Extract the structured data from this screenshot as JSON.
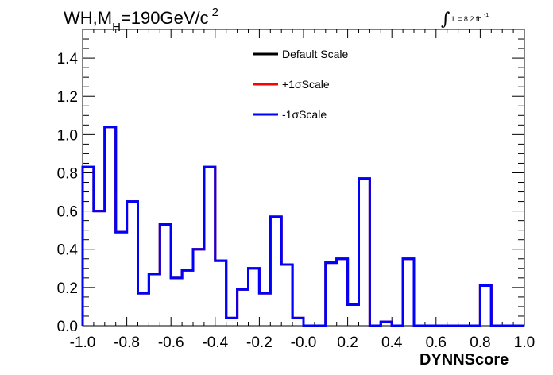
{
  "header": {
    "title_main": "WH,M",
    "title_sub": "H",
    "title_rest": "=190GeV/c",
    "title_sup": "2",
    "lumi_integral": "∫",
    "lumi_text": "L = 8.2 fb",
    "lumi_sup": "-1"
  },
  "chart_data": {
    "type": "line",
    "xlabel": "DYNNScore",
    "ylabel": "",
    "xlim": [
      -1.0,
      1.0
    ],
    "ylim": [
      0.0,
      1.55
    ],
    "x_ticks": [
      "-1.0",
      "-0.8",
      "-0.6",
      "-0.4",
      "-0.2",
      "-0.0",
      "0.2",
      "0.4",
      "0.6",
      "0.8",
      "1.0"
    ],
    "y_ticks": [
      "0.0",
      "0.2",
      "0.4",
      "0.6",
      "0.8",
      "1.0",
      "1.2",
      "1.4"
    ],
    "bin_edges": [
      -1.0,
      -0.95,
      -0.9,
      -0.85,
      -0.8,
      -0.75,
      -0.7,
      -0.65,
      -0.6,
      -0.55,
      -0.5,
      -0.45,
      -0.4,
      -0.35,
      -0.3,
      -0.25,
      -0.2,
      -0.15,
      -0.1,
      -0.05,
      0.0,
      0.05,
      0.1,
      0.15,
      0.2,
      0.25,
      0.3,
      0.35,
      0.4,
      0.45,
      0.5,
      0.55,
      0.6,
      0.65,
      0.7,
      0.75,
      0.8,
      0.85,
      0.9,
      0.95,
      1.0
    ],
    "legend_position": "top-center",
    "series": [
      {
        "name": "Default Scale",
        "color": "#000000",
        "values": [
          0.83,
          0.6,
          1.04,
          0.49,
          0.65,
          0.17,
          0.27,
          0.53,
          0.25,
          0.29,
          0.4,
          0.83,
          0.34,
          0.04,
          0.19,
          0.3,
          0.17,
          0.57,
          0.32,
          0.04,
          0.0,
          0.0,
          0.33,
          0.35,
          0.11,
          0.77,
          0.0,
          0.02,
          0.0,
          0.35,
          0.0,
          0.0,
          0.0,
          0.0,
          0.0,
          0.0,
          0.21,
          0.0,
          0.0,
          0.0
        ]
      },
      {
        "name": "+1σScale",
        "color": "#ff0000",
        "values": [
          0.83,
          0.6,
          1.04,
          0.49,
          0.65,
          0.17,
          0.27,
          0.53,
          0.25,
          0.29,
          0.4,
          0.83,
          0.34,
          0.04,
          0.19,
          0.3,
          0.17,
          0.57,
          0.32,
          0.04,
          0.0,
          0.0,
          0.33,
          0.35,
          0.11,
          0.77,
          0.0,
          0.02,
          0.0,
          0.35,
          0.0,
          0.0,
          0.0,
          0.0,
          0.0,
          0.0,
          0.21,
          0.0,
          0.0,
          0.0
        ]
      },
      {
        "name": "-1σScale",
        "color": "#0000ff",
        "values": [
          0.83,
          0.6,
          1.04,
          0.49,
          0.65,
          0.17,
          0.27,
          0.53,
          0.25,
          0.29,
          0.4,
          0.83,
          0.34,
          0.04,
          0.19,
          0.3,
          0.17,
          0.57,
          0.32,
          0.04,
          0.0,
          0.0,
          0.33,
          0.35,
          0.11,
          0.77,
          0.0,
          0.02,
          0.0,
          0.35,
          0.0,
          0.0,
          0.0,
          0.0,
          0.0,
          0.0,
          0.21,
          0.0,
          0.0,
          0.0
        ]
      }
    ]
  }
}
